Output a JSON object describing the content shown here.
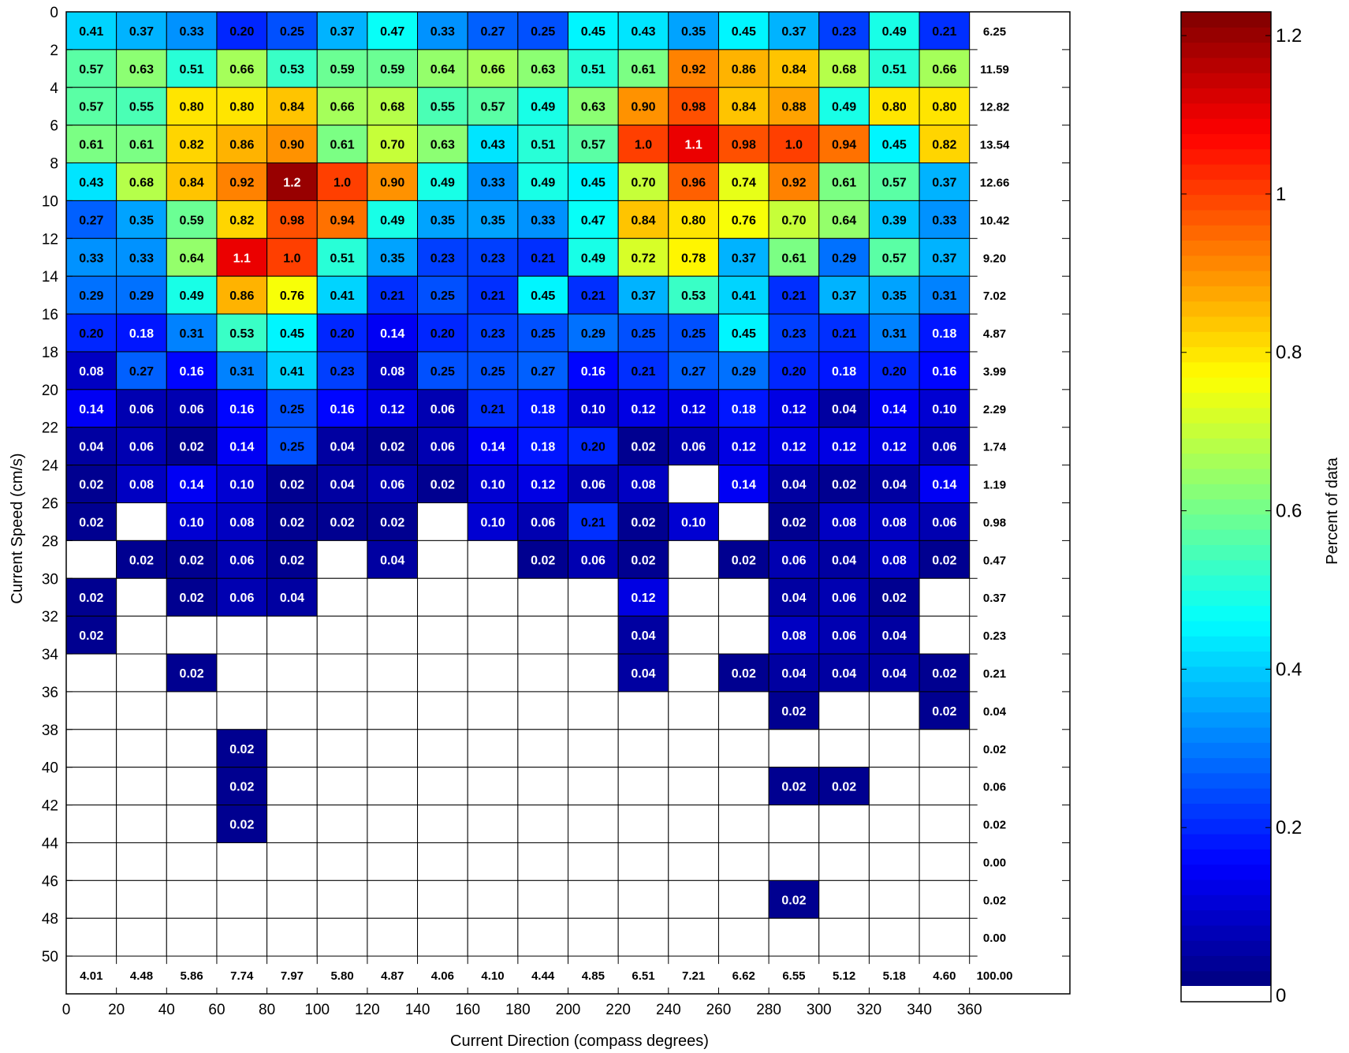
{
  "chart_data": {
    "type": "heatmap",
    "title": "",
    "xlabel": "Current Direction (compass degrees)",
    "ylabel": "Current Speed (cm/s)",
    "xlim": [
      0,
      360
    ],
    "ylim": [
      0,
      50
    ],
    "x_bin_width": 20,
    "y_bin_width": 2,
    "x_ticks": [
      "0",
      "20",
      "40",
      "60",
      "80",
      "100",
      "120",
      "140",
      "160",
      "180",
      "200",
      "220",
      "240",
      "260",
      "280",
      "300",
      "320",
      "340",
      "360"
    ],
    "y_ticks": [
      "0",
      "2",
      "4",
      "6",
      "8",
      "10",
      "12",
      "14",
      "16",
      "18",
      "20",
      "22",
      "24",
      "26",
      "28",
      "30",
      "32",
      "34",
      "36",
      "38",
      "40",
      "42",
      "44",
      "46",
      "48",
      "50"
    ],
    "direction_bins": [
      "0-20",
      "20-40",
      "40-60",
      "60-80",
      "80-100",
      "100-120",
      "120-140",
      "140-160",
      "160-180",
      "180-200",
      "200-220",
      "220-240",
      "240-260",
      "260-280",
      "280-300",
      "300-320",
      "320-340",
      "340-360"
    ],
    "speed_bins": [
      "0-2",
      "2-4",
      "4-6",
      "6-8",
      "8-10",
      "10-12",
      "12-14",
      "14-16",
      "16-18",
      "18-20",
      "20-22",
      "22-24",
      "24-26",
      "26-28",
      "28-30",
      "30-32",
      "32-34",
      "34-36",
      "36-38",
      "38-40",
      "40-42",
      "42-44",
      "44-46",
      "46-48",
      "48-50"
    ],
    "values": [
      [
        "0.41",
        "0.37",
        "0.33",
        "0.20",
        "0.25",
        "0.37",
        "0.47",
        "0.33",
        "0.27",
        "0.25",
        "0.45",
        "0.43",
        "0.35",
        "0.45",
        "0.37",
        "0.23",
        "0.49",
        "0.21"
      ],
      [
        "0.57",
        "0.63",
        "0.51",
        "0.66",
        "0.53",
        "0.59",
        "0.59",
        "0.64",
        "0.66",
        "0.63",
        "0.51",
        "0.61",
        "0.92",
        "0.86",
        "0.84",
        "0.68",
        "0.51",
        "0.66"
      ],
      [
        "0.57",
        "0.55",
        "0.80",
        "0.80",
        "0.84",
        "0.66",
        "0.68",
        "0.55",
        "0.57",
        "0.49",
        "0.63",
        "0.90",
        "0.98",
        "0.84",
        "0.88",
        "0.49",
        "0.80",
        "0.80"
      ],
      [
        "0.61",
        "0.61",
        "0.82",
        "0.86",
        "0.90",
        "0.61",
        "0.70",
        "0.63",
        "0.43",
        "0.51",
        "0.57",
        "1.0",
        "1.1",
        "0.98",
        "1.0",
        "0.94",
        "0.45",
        "0.82"
      ],
      [
        "0.43",
        "0.68",
        "0.84",
        "0.92",
        "1.2",
        "1.0",
        "0.90",
        "0.49",
        "0.33",
        "0.49",
        "0.45",
        "0.70",
        "0.96",
        "0.74",
        "0.92",
        "0.61",
        "0.57",
        "0.37"
      ],
      [
        "0.27",
        "0.35",
        "0.59",
        "0.82",
        "0.98",
        "0.94",
        "0.49",
        "0.35",
        "0.35",
        "0.33",
        "0.47",
        "0.84",
        "0.80",
        "0.76",
        "0.70",
        "0.64",
        "0.39",
        "0.33"
      ],
      [
        "0.33",
        "0.33",
        "0.64",
        "1.1",
        "1.0",
        "0.51",
        "0.35",
        "0.23",
        "0.23",
        "0.21",
        "0.49",
        "0.72",
        "0.78",
        "0.37",
        "0.61",
        "0.29",
        "0.57",
        "0.37"
      ],
      [
        "0.29",
        "0.29",
        "0.49",
        "0.86",
        "0.76",
        "0.41",
        "0.21",
        "0.25",
        "0.21",
        "0.45",
        "0.21",
        "0.37",
        "0.53",
        "0.41",
        "0.21",
        "0.37",
        "0.35",
        "0.31"
      ],
      [
        "0.20",
        "0.18",
        "0.31",
        "0.53",
        "0.45",
        "0.20",
        "0.14",
        "0.20",
        "0.23",
        "0.25",
        "0.29",
        "0.25",
        "0.25",
        "0.45",
        "0.23",
        "0.21",
        "0.31",
        "0.18"
      ],
      [
        "0.08",
        "0.27",
        "0.16",
        "0.31",
        "0.41",
        "0.23",
        "0.08",
        "0.25",
        "0.25",
        "0.27",
        "0.16",
        "0.21",
        "0.27",
        "0.29",
        "0.20",
        "0.18",
        "0.20",
        "0.16"
      ],
      [
        "0.14",
        "0.06",
        "0.06",
        "0.16",
        "0.25",
        "0.16",
        "0.12",
        "0.06",
        "0.21",
        "0.18",
        "0.10",
        "0.12",
        "0.12",
        "0.18",
        "0.12",
        "0.04",
        "0.14",
        "0.10"
      ],
      [
        "0.04",
        "0.06",
        "0.02",
        "0.14",
        "0.25",
        "0.04",
        "0.02",
        "0.06",
        "0.14",
        "0.18",
        "0.20",
        "0.02",
        "0.06",
        "0.12",
        "0.12",
        "0.12",
        "0.12",
        "0.06"
      ],
      [
        "0.02",
        "0.08",
        "0.14",
        "0.10",
        "0.02",
        "0.04",
        "0.06",
        "0.02",
        "0.10",
        "0.12",
        "0.06",
        "0.08",
        null,
        "0.14",
        "0.04",
        "0.02",
        "0.04",
        "0.14"
      ],
      [
        "0.02",
        null,
        "0.10",
        "0.08",
        "0.02",
        "0.02",
        "0.02",
        null,
        "0.10",
        "0.06",
        "0.21",
        "0.02",
        "0.10",
        null,
        "0.02",
        "0.08",
        "0.08",
        "0.06"
      ],
      [
        null,
        "0.02",
        "0.02",
        "0.06",
        "0.02",
        null,
        "0.04",
        null,
        null,
        "0.02",
        "0.06",
        "0.02",
        null,
        "0.02",
        "0.06",
        "0.04",
        "0.08",
        "0.02"
      ],
      [
        "0.02",
        null,
        "0.02",
        "0.06",
        "0.04",
        null,
        null,
        null,
        null,
        null,
        null,
        "0.12",
        null,
        null,
        "0.04",
        "0.06",
        "0.02",
        null
      ],
      [
        "0.02",
        null,
        null,
        null,
        null,
        null,
        null,
        null,
        null,
        null,
        null,
        "0.04",
        null,
        null,
        "0.08",
        "0.06",
        "0.04",
        null
      ],
      [
        null,
        null,
        "0.02",
        null,
        null,
        null,
        null,
        null,
        null,
        null,
        null,
        "0.04",
        null,
        "0.02",
        "0.04",
        "0.04",
        "0.04",
        "0.02"
      ],
      [
        null,
        null,
        null,
        null,
        null,
        null,
        null,
        null,
        null,
        null,
        null,
        null,
        null,
        null,
        "0.02",
        null,
        null,
        "0.02"
      ],
      [
        null,
        null,
        null,
        "0.02",
        null,
        null,
        null,
        null,
        null,
        null,
        null,
        null,
        null,
        null,
        null,
        null,
        null,
        null
      ],
      [
        null,
        null,
        null,
        "0.02",
        null,
        null,
        null,
        null,
        null,
        null,
        null,
        null,
        null,
        null,
        "0.02",
        "0.02",
        null,
        null
      ],
      [
        null,
        null,
        null,
        "0.02",
        null,
        null,
        null,
        null,
        null,
        null,
        null,
        null,
        null,
        null,
        null,
        null,
        null,
        null
      ],
      [
        null,
        null,
        null,
        null,
        null,
        null,
        null,
        null,
        null,
        null,
        null,
        null,
        null,
        null,
        null,
        null,
        null,
        null
      ],
      [
        null,
        null,
        null,
        null,
        null,
        null,
        null,
        null,
        null,
        null,
        null,
        null,
        null,
        null,
        "0.02",
        null,
        null,
        null
      ],
      [
        null,
        null,
        null,
        null,
        null,
        null,
        null,
        null,
        null,
        null,
        null,
        null,
        null,
        null,
        null,
        null,
        null,
        null
      ]
    ],
    "row_totals": [
      "6.25",
      "11.59",
      "12.82",
      "13.54",
      "12.66",
      "10.42",
      "9.20",
      "7.02",
      "4.87",
      "3.99",
      "2.29",
      "1.74",
      "1.19",
      "0.98",
      "0.47",
      "0.37",
      "0.23",
      "0.21",
      "0.04",
      "0.02",
      "0.06",
      "0.02",
      "0.00",
      "0.02",
      "0.00"
    ],
    "column_totals": [
      "4.01",
      "4.48",
      "5.86",
      "7.74",
      "7.97",
      "5.80",
      "4.87",
      "4.06",
      "4.10",
      "4.44",
      "4.85",
      "6.51",
      "7.21",
      "6.62",
      "6.55",
      "5.12",
      "5.18",
      "4.60"
    ],
    "grand_total": "100.00",
    "colorbar": {
      "label": "Percent of data",
      "range": [
        0,
        1.23
      ],
      "ticks": [
        "0",
        "0.2",
        "0.4",
        "0.6",
        "0.8",
        "1",
        "1.2"
      ],
      "colormap": "jet",
      "zero_color": "#ffffff"
    },
    "grid": true
  }
}
